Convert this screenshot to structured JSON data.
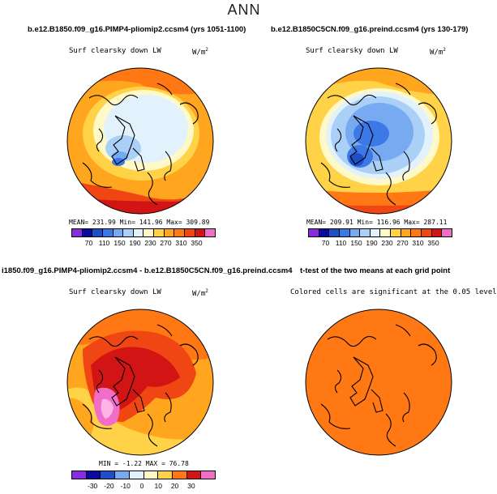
{
  "title": "ANN",
  "panels": [
    {
      "case": "b.e12.B1850.f09_g16.PIMP4-pliomip2.ccsm4 (yrs 1051-1100)",
      "variable": "Surf clearsky down LW",
      "units_base": "W/m",
      "units_exp": "2",
      "stats": "MEAN= 231.99    Min= 141.96    Max= 309.89",
      "colorbar": {
        "colors": [
          "#8a2be2",
          "#0a0a9e",
          "#1f4fc8",
          "#3c78e6",
          "#78aaf2",
          "#aad0f8",
          "#e2f2fc",
          "#fff9c8",
          "#ffd248",
          "#ffa51e",
          "#ff7814",
          "#f04614",
          "#d21414",
          "#f06ec8"
        ],
        "ticks": [
          "70",
          "110",
          "150",
          "190",
          "230",
          "270",
          "310",
          "350"
        ]
      }
    },
    {
      "case": "b.e12.B1850C5CN.f09_g16.preind.ccsm4 (yrs 130-179)",
      "variable": "Surf clearsky down LW",
      "units_base": "W/m",
      "units_exp": "2",
      "stats": "MEAN= 209.91    Min= 116.96    Max= 287.11",
      "colorbar": {
        "colors": [
          "#8a2be2",
          "#0a0a9e",
          "#1f4fc8",
          "#3c78e6",
          "#78aaf2",
          "#aad0f8",
          "#e2f2fc",
          "#fff9c8",
          "#ffd248",
          "#ffa51e",
          "#ff7814",
          "#f04614",
          "#d21414",
          "#f06ec8"
        ],
        "ticks": [
          "70",
          "110",
          "150",
          "190",
          "230",
          "270",
          "310",
          "350"
        ]
      }
    },
    {
      "case": "i1850.f09_g16.PIMP4-pliomip2.ccsm4 - b.e12.B1850C5CN.f09_g16.preind.ccsm4",
      "variable": "Surf clearsky down LW",
      "units_base": "W/m",
      "units_exp": "2",
      "stats": "MIN =   -1.22  MAX =   76.78",
      "colorbar": {
        "colors": [
          "#8a2be2",
          "#0a0a9e",
          "#1f4fc8",
          "#78aaf2",
          "#e2f2fc",
          "#fff9c8",
          "#ffd248",
          "#ff7814",
          "#d21414",
          "#f06ec8"
        ],
        "ticks": [
          "-30",
          "-20",
          "-10",
          "0",
          "10",
          "20",
          "30"
        ]
      }
    },
    {
      "case": "t-test of the two means at each grid point",
      "variable": "Colored cells are significant at the 0.05 level"
    }
  ]
}
